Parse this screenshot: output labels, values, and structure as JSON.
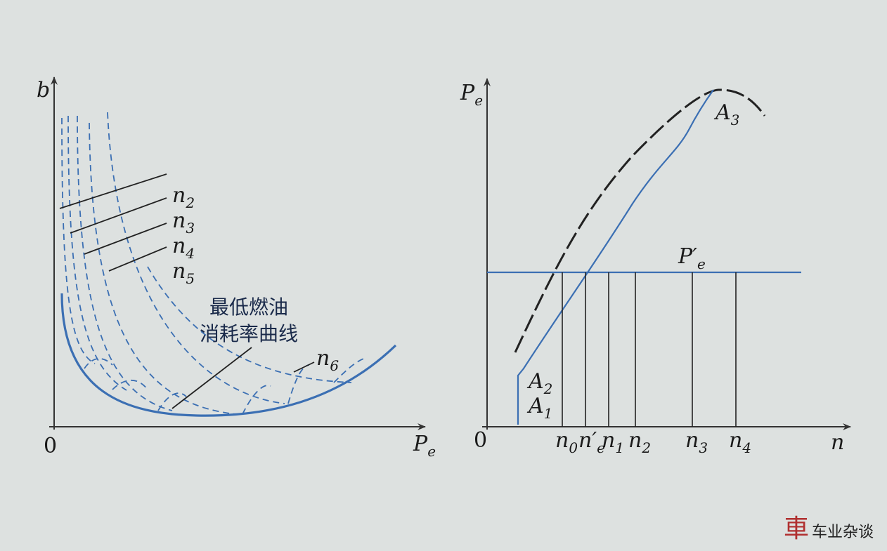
{
  "left_diagram": {
    "y_axis_label": "b",
    "origin": "0",
    "x_axis_label": {
      "base": "P",
      "sub": "e"
    },
    "curve_labels": [
      {
        "base": "n",
        "sub": "2"
      },
      {
        "base": "n",
        "sub": "3"
      },
      {
        "base": "n",
        "sub": "4"
      },
      {
        "base": "n",
        "sub": "5"
      },
      {
        "base": "n",
        "sub": "6"
      }
    ],
    "envelope_label": [
      "最低燃油",
      "消耗率曲线"
    ]
  },
  "right_diagram": {
    "y_axis_label": {
      "base": "P",
      "sub": "e"
    },
    "origin": "0",
    "x_axis_label": "n",
    "curve_labels": [
      {
        "base": "A",
        "sub": "3"
      },
      {
        "base": "A",
        "sub": "2"
      },
      {
        "base": "A",
        "sub": "1"
      }
    ],
    "line_label": {
      "base": "P′",
      "sub": "e"
    },
    "x_marks": [
      {
        "base": "n",
        "sub": "0"
      },
      {
        "base": "n′",
        "sub": "e"
      },
      {
        "base": "n",
        "sub": "1"
      },
      {
        "base": "n",
        "sub": "2"
      },
      {
        "base": "n",
        "sub": "3"
      },
      {
        "base": "n",
        "sub": "4"
      }
    ]
  },
  "watermark": {
    "logo": "車",
    "text": "车业杂谈"
  }
}
